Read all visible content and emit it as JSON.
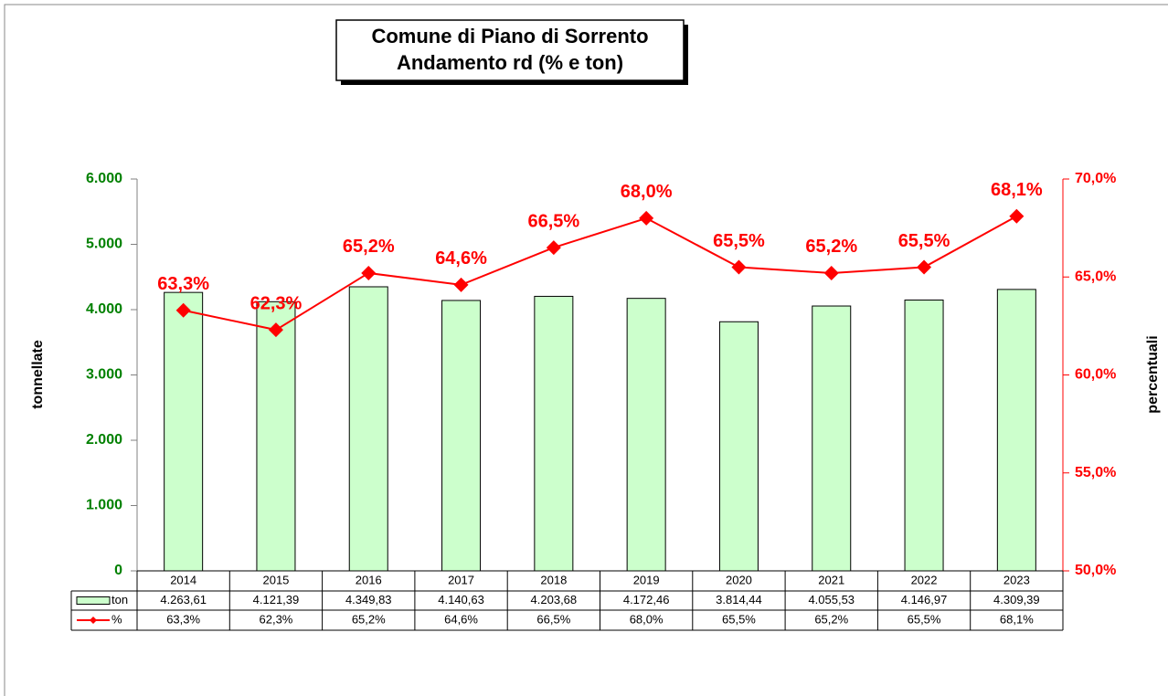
{
  "chart_data": {
    "type": "bar",
    "title": "Comune di Piano di Sorrento",
    "subtitle": "Andamento rd (% e ton)",
    "ylabel": "tonnellate",
    "y2label": "percentuali",
    "categories": [
      "2014",
      "2015",
      "2016",
      "2017",
      "2018",
      "2019",
      "2020",
      "2021",
      "2022",
      "2023"
    ],
    "series": [
      {
        "name": "ton",
        "type": "bar",
        "color": "#ccffcc",
        "values": [
          4263.61,
          4121.39,
          4349.83,
          4140.63,
          4203.68,
          4172.46,
          3814.44,
          4055.53,
          4146.97,
          4309.39
        ],
        "value_labels": [
          "4.263,61",
          "4.121,39",
          "4.349,83",
          "4.140,63",
          "4.203,68",
          "4.172,46",
          "3.814,44",
          "4.055,53",
          "4.146,97",
          "4.309,39"
        ]
      },
      {
        "name": "%",
        "type": "line",
        "axis": "y2",
        "color": "#ff0000",
        "values": [
          63.3,
          62.3,
          65.2,
          64.6,
          66.5,
          68.0,
          65.5,
          65.2,
          65.5,
          68.1
        ],
        "value_labels": [
          "63,3%",
          "62,3%",
          "65,2%",
          "64,6%",
          "66,5%",
          "68,0%",
          "65,5%",
          "65,2%",
          "65,5%",
          "68,1%"
        ]
      }
    ],
    "ylim": [
      0,
      6000
    ],
    "yticks": [
      0,
      {
        "value": 1000,
        "label": "1.000"
      },
      {
        "value": 2000,
        "label": "2.000"
      },
      {
        "value": 3000,
        "label": "3.000"
      },
      {
        "value": 4000,
        "label": "4.000"
      },
      {
        "value": 5000,
        "label": "5.000"
      },
      {
        "value": 6000,
        "label": "6.000"
      }
    ],
    "y2lim": [
      50,
      70
    ],
    "y2ticks": [
      {
        "value": 50,
        "label": "50,0%"
      },
      {
        "value": 55,
        "label": "55,0%"
      },
      {
        "value": 60,
        "label": "60,0%"
      },
      {
        "value": 65,
        "label": "65,0%"
      },
      {
        "value": 70,
        "label": "70,0%"
      }
    ]
  }
}
